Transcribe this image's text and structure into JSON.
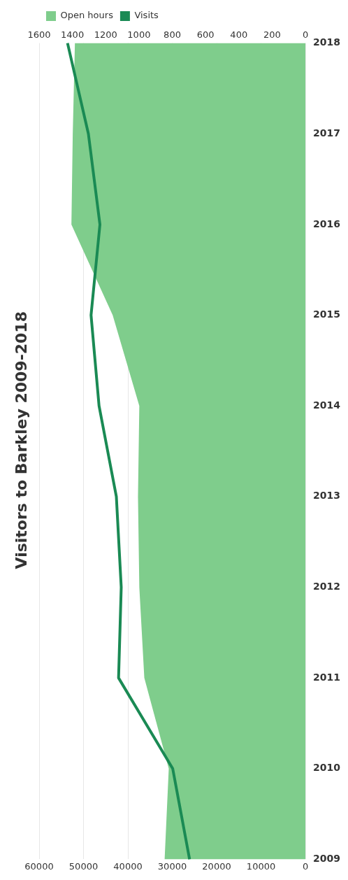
{
  "chart_data": {
    "type": "line",
    "orientation": "horizontal",
    "title": "Visitors to Barkley 2009-2018",
    "categories": [
      "2018",
      "2017",
      "2016",
      "2015",
      "2014",
      "2013",
      "2012",
      "2011",
      "2010",
      "2009"
    ],
    "series": [
      {
        "name": "Open hours",
        "type": "area",
        "axis": "x2",
        "color": "#7fcd8c",
        "values": [
          1385,
          1398,
          1406,
          1158,
          998,
          1006,
          998,
          968,
          821,
          846
        ]
      },
      {
        "name": "Visits",
        "type": "line",
        "color": "#1a8a54",
        "values": [
          53600,
          48900,
          46300,
          48300,
          46500,
          42600,
          41500,
          42100,
          29900,
          26100
        ]
      }
    ],
    "xlim": [
      60000,
      0
    ],
    "xticks": [
      0,
      10000,
      20000,
      30000,
      40000,
      50000,
      60000
    ],
    "x2lim": [
      1600,
      0
    ],
    "x2ticks": [
      0,
      200,
      400,
      600,
      800,
      1000,
      1200,
      1400,
      1600
    ],
    "grid": "x",
    "legend": "top left",
    "marker": "none",
    "line_style": "solid"
  }
}
